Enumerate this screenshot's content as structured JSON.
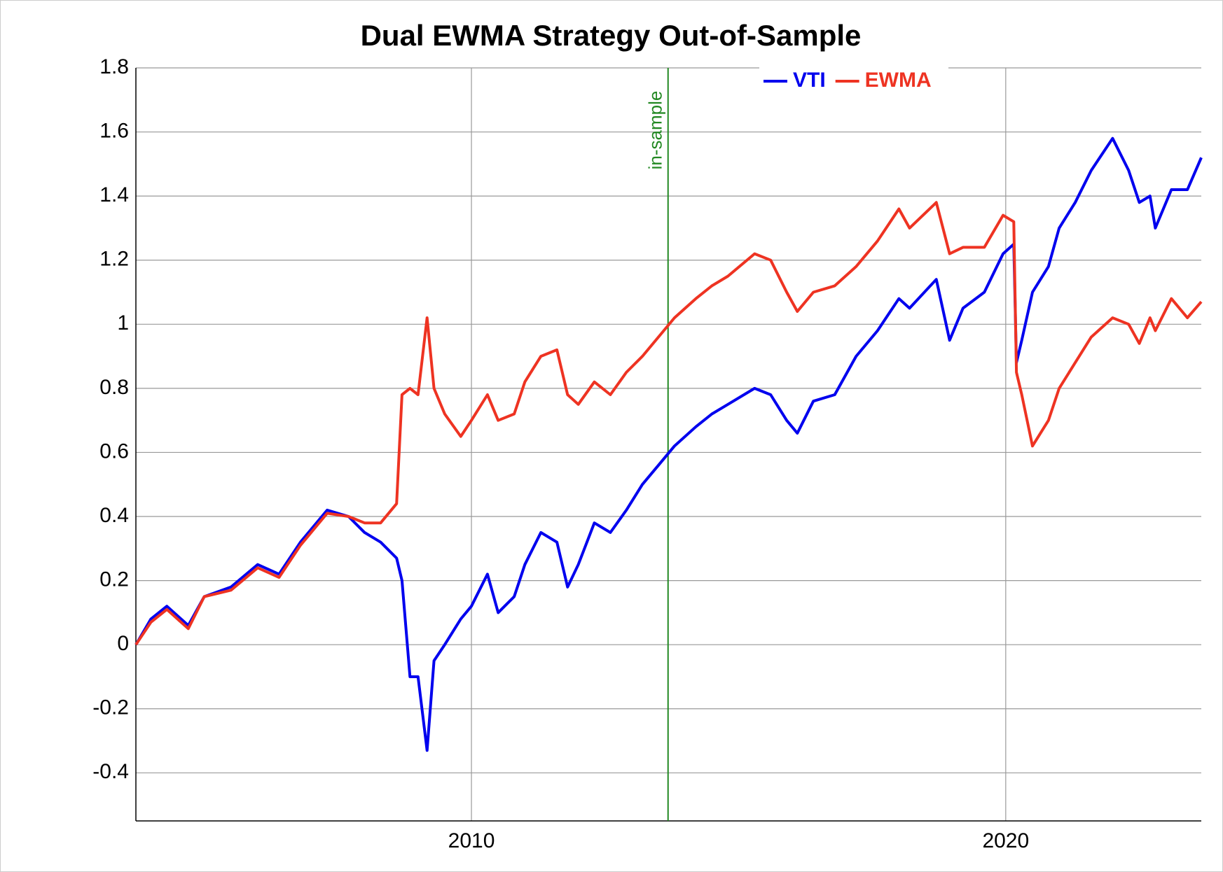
{
  "chart_data": {
    "type": "line",
    "title": "Dual EWMA Strategy Out-of-Sample",
    "x": [
      2003.72,
      2004.0,
      2004.3,
      2004.7,
      2005.0,
      2005.5,
      2006.0,
      2006.4,
      2006.8,
      2007.3,
      2007.7,
      2008.0,
      2008.3,
      2008.6,
      2008.7,
      2008.85,
      2009.0,
      2009.17,
      2009.3,
      2009.5,
      2009.8,
      2010.0,
      2010.3,
      2010.5,
      2010.8,
      2011.0,
      2011.3,
      2011.6,
      2011.8,
      2012.0,
      2012.3,
      2012.6,
      2012.9,
      2013.2,
      2013.5,
      2013.8,
      2014.2,
      2014.5,
      2014.8,
      2015.3,
      2015.6,
      2015.9,
      2016.1,
      2016.4,
      2016.8,
      2017.2,
      2017.6,
      2018.0,
      2018.2,
      2018.7,
      2018.95,
      2019.2,
      2019.6,
      2019.95,
      2020.15,
      2020.2,
      2020.3,
      2020.5,
      2020.8,
      2021.0,
      2021.3,
      2021.6,
      2022.0,
      2022.3,
      2022.5,
      2022.7,
      2022.8,
      2023.1,
      2023.4,
      2023.66
    ],
    "series": [
      {
        "name": "VTI",
        "color": "#0000ee",
        "values": [
          0.0,
          0.08,
          0.12,
          0.06,
          0.15,
          0.18,
          0.25,
          0.22,
          0.32,
          0.42,
          0.4,
          0.35,
          0.32,
          0.27,
          0.2,
          -0.1,
          -0.1,
          -0.33,
          -0.05,
          0.0,
          0.08,
          0.12,
          0.22,
          0.1,
          0.15,
          0.25,
          0.35,
          0.32,
          0.18,
          0.25,
          0.38,
          0.35,
          0.42,
          0.5,
          0.56,
          0.62,
          0.68,
          0.72,
          0.75,
          0.8,
          0.78,
          0.7,
          0.66,
          0.76,
          0.78,
          0.9,
          0.98,
          1.08,
          1.05,
          1.14,
          0.95,
          1.05,
          1.1,
          1.22,
          1.25,
          0.88,
          0.95,
          1.1,
          1.18,
          1.3,
          1.38,
          1.48,
          1.58,
          1.48,
          1.38,
          1.4,
          1.3,
          1.42,
          1.42,
          1.52
        ]
      },
      {
        "name": "EWMA",
        "color": "#ee3322",
        "values": [
          0.0,
          0.07,
          0.11,
          0.05,
          0.15,
          0.17,
          0.24,
          0.21,
          0.31,
          0.41,
          0.4,
          0.38,
          0.38,
          0.44,
          0.78,
          0.8,
          0.78,
          1.02,
          0.8,
          0.72,
          0.65,
          0.7,
          0.78,
          0.7,
          0.72,
          0.82,
          0.9,
          0.92,
          0.78,
          0.75,
          0.82,
          0.78,
          0.85,
          0.9,
          0.96,
          1.02,
          1.08,
          1.12,
          1.15,
          1.22,
          1.2,
          1.1,
          1.04,
          1.1,
          1.12,
          1.18,
          1.26,
          1.36,
          1.3,
          1.38,
          1.22,
          1.24,
          1.24,
          1.34,
          1.32,
          0.85,
          0.78,
          0.62,
          0.7,
          0.8,
          0.88,
          0.96,
          1.02,
          1.0,
          0.94,
          1.02,
          0.98,
          1.08,
          1.02,
          1.07
        ]
      }
    ],
    "xlim": [
      2003.72,
      2023.66
    ],
    "xticks": [
      2010,
      2020
    ],
    "ylim": [
      -0.55,
      1.8
    ],
    "yticks": [
      -0.4,
      -0.2,
      0,
      0.2,
      0.4,
      0.6,
      0.8,
      1,
      1.2,
      1.4,
      1.6,
      1.8
    ],
    "grid": true,
    "legend": "top",
    "vline": {
      "x": 2013.68,
      "label": "in-sample",
      "color": "#228822"
    }
  }
}
